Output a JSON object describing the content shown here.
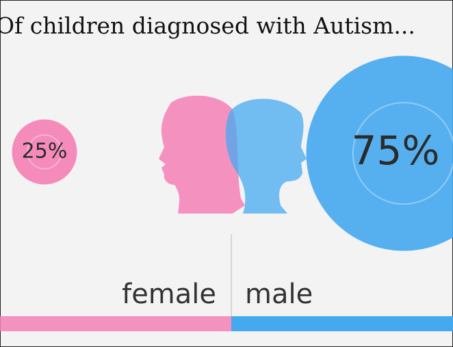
{
  "chart_data": {
    "type": "proportion-bubbles",
    "title": "Of children diagnosed with Autism...",
    "categories": [
      "female",
      "male"
    ],
    "values": [
      25,
      75
    ],
    "value_labels": [
      "25%",
      "75%"
    ],
    "colors": [
      "#f47fb5",
      "#45a9f0"
    ]
  }
}
